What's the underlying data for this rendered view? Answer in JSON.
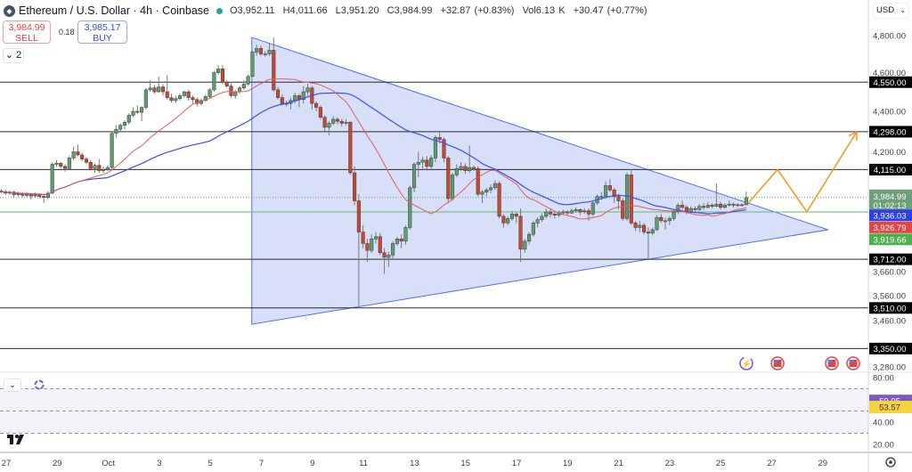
{
  "header": {
    "symbol_title": "Ethereum / U.S. Dollar · 4h · Coinbase",
    "open": "O3,952.11",
    "high": "H4,011.66",
    "low": "L3,951.20",
    "close": "C3,984.99",
    "change": "+32.87 (+0.83%)",
    "volume": "Vol6.13 K",
    "volume_change": "+30.47 (+0.77%)"
  },
  "trade": {
    "sell_price": "3,984.99",
    "sell_label": "SELL",
    "spread": "0.18",
    "buy_price": "3,985.17",
    "buy_label": "BUY"
  },
  "indicators_toggle": "⌄ 2",
  "currency": "USD",
  "colors": {
    "up": "#5f9f6f",
    "down": "#c9482f",
    "ma_fast": "#e35d5d",
    "ma_slow": "#3d4ef0",
    "triangle_fill": "#c9d4f7",
    "triangle_line": "#4f6ef2",
    "projection": "#f39c24",
    "rsi": "#7e57c2",
    "rsi_ma": "#f0c94a",
    "current_line": "#66bb6a"
  },
  "chart_data": [
    {
      "type": "candlestick",
      "interval": "4h",
      "scale": "log",
      "ylim": [
        3280,
        4800
      ],
      "x_ticks": [
        "27",
        "29",
        "Oct",
        "3",
        "5",
        "7",
        "9",
        "11",
        "13",
        "15",
        "17",
        "19",
        "21",
        "23",
        "25",
        "27",
        "29"
      ],
      "y_ticks": [
        "4,800.00",
        "4,600.00",
        "4,400.00",
        "4,200.00",
        "3,660.00",
        "3,560.00",
        "3,460.00",
        "3,280.00"
      ],
      "horizontal_levels": [
        "4,550.00",
        "4,298.00",
        "4,115.00",
        "3,712.00",
        "3,510.00",
        "3,350.00"
      ],
      "price_tags": {
        "last": "3,984.99",
        "countdown": "01:02:13",
        "ma_slow": "3,936.03",
        "ma_fast": "3,926.79",
        "level": "3,919.66"
      },
      "triangle": [
        {
          "time": "Oct 6 15:00",
          "price": 4790
        },
        {
          "time": "Oct 29 05:00",
          "price": 3840
        },
        {
          "time": "Oct 6 15:00",
          "price": 3445
        }
      ],
      "projection": [
        {
          "time": "Oct 26 02:00",
          "price": 3960
        },
        {
          "time": "Oct 27 05:30",
          "price": 4115
        },
        {
          "time": "Oct 28 09:00",
          "price": 3920
        },
        {
          "time": "Oct 30 08:00",
          "price": 4298
        }
      ],
      "candles": [
        [
          4015,
          4025,
          4002,
          4012
        ],
        [
          4012,
          4020,
          3998,
          4005
        ],
        [
          4005,
          4018,
          3996,
          4010
        ],
        [
          4010,
          4016,
          3985,
          3998
        ],
        [
          3998,
          4012,
          3990,
          4002
        ],
        [
          4002,
          4010,
          3985,
          3995
        ],
        [
          3995,
          4010,
          3988,
          4000
        ],
        [
          4000,
          4006,
          3975,
          3992
        ],
        [
          3992,
          4008,
          3985,
          3998
        ],
        [
          3998,
          4004,
          3982,
          3990
        ],
        [
          3990,
          3998,
          3960,
          3985
        ],
        [
          3985,
          4015,
          3978,
          4005
        ],
        [
          4005,
          4150,
          4000,
          4140
        ],
        [
          4140,
          4160,
          4128,
          4145
        ],
        [
          4145,
          4152,
          4120,
          4130
        ],
        [
          4130,
          4140,
          4105,
          4120
        ],
        [
          4120,
          4180,
          4115,
          4170
        ],
        [
          4170,
          4225,
          4160,
          4200
        ],
        [
          4200,
          4235,
          4178,
          4185
        ],
        [
          4185,
          4195,
          4155,
          4165
        ],
        [
          4165,
          4175,
          4140,
          4150
        ],
        [
          4150,
          4160,
          4110,
          4120
        ],
        [
          4120,
          4145,
          4100,
          4135
        ],
        [
          4135,
          4165,
          4100,
          4110
        ],
        [
          4110,
          4130,
          4098,
          4115
        ],
        [
          4115,
          4135,
          4108,
          4125
        ],
        [
          4125,
          4300,
          4120,
          4290
        ],
        [
          4290,
          4330,
          4270,
          4310
        ],
        [
          4310,
          4340,
          4300,
          4330
        ],
        [
          4330,
          4355,
          4310,
          4345
        ],
        [
          4345,
          4390,
          4335,
          4380
        ],
        [
          4380,
          4420,
          4370,
          4400
        ],
        [
          4400,
          4430,
          4385,
          4395
        ],
        [
          4395,
          4425,
          4350,
          4420
        ],
        [
          4420,
          4520,
          4410,
          4510
        ],
        [
          4510,
          4560,
          4500,
          4520
        ],
        [
          4520,
          4535,
          4490,
          4500
        ],
        [
          4500,
          4580,
          4495,
          4525
        ],
        [
          4525,
          4540,
          4480,
          4500
        ],
        [
          4500,
          4585,
          4460,
          4470
        ],
        [
          4470,
          4490,
          4445,
          4455
        ],
        [
          4455,
          4480,
          4440,
          4465
        ],
        [
          4465,
          4490,
          4455,
          4480
        ],
        [
          4480,
          4505,
          4470,
          4500
        ],
        [
          4500,
          4510,
          4455,
          4470
        ],
        [
          4470,
          4480,
          4440,
          4460
        ],
        [
          4460,
          4470,
          4425,
          4440
        ],
        [
          4440,
          4465,
          4430,
          4455
        ],
        [
          4455,
          4485,
          4450,
          4475
        ],
        [
          4475,
          4520,
          4465,
          4510
        ],
        [
          4510,
          4610,
          4500,
          4600
        ],
        [
          4600,
          4640,
          4590,
          4620
        ],
        [
          4620,
          4640,
          4540,
          4550
        ],
        [
          4550,
          4560,
          4520,
          4530
        ],
        [
          4530,
          4545,
          4470,
          4480
        ],
        [
          4480,
          4510,
          4465,
          4500
        ],
        [
          4500,
          4530,
          4490,
          4520
        ],
        [
          4520,
          4560,
          4510,
          4540
        ],
        [
          4540,
          4590,
          4530,
          4580
        ],
        [
          4580,
          4720,
          4575,
          4710
        ],
        [
          4710,
          4750,
          4690,
          4730
        ],
        [
          4730,
          4745,
          4690,
          4700
        ],
        [
          4700,
          4715,
          4685,
          4700
        ],
        [
          4700,
          4760,
          4690,
          4720
        ],
        [
          4720,
          4790,
          4500,
          4510
        ],
        [
          4510,
          4525,
          4460,
          4470
        ],
        [
          4470,
          4485,
          4430,
          4440
        ],
        [
          4440,
          4455,
          4425,
          4440
        ],
        [
          4440,
          4470,
          4410,
          4455
        ],
        [
          4455,
          4495,
          4440,
          4480
        ],
        [
          4480,
          4490,
          4420,
          4460
        ],
        [
          4460,
          4530,
          4440,
          4500
        ],
        [
          4500,
          4540,
          4480,
          4520
        ],
        [
          4520,
          4530,
          4410,
          4440
        ],
        [
          4440,
          4450,
          4400,
          4420
        ],
        [
          4420,
          4430,
          4360,
          4370
        ],
        [
          4370,
          4380,
          4300,
          4320
        ],
        [
          4320,
          4350,
          4280,
          4340
        ],
        [
          4340,
          4375,
          4330,
          4360
        ],
        [
          4360,
          4370,
          4335,
          4350
        ],
        [
          4350,
          4362,
          4325,
          4340
        ],
        [
          4340,
          4360,
          4330,
          4345
        ],
        [
          4345,
          4350,
          4090,
          4100
        ],
        [
          4100,
          4130,
          3950,
          3970
        ],
        [
          3970,
          4000,
          3510,
          3830
        ],
        [
          3830,
          3860,
          3760,
          3780
        ],
        [
          3780,
          3800,
          3700,
          3750
        ],
        [
          3750,
          3820,
          3740,
          3800
        ],
        [
          3800,
          3830,
          3780,
          3810
        ],
        [
          3810,
          3825,
          3730,
          3740
        ],
        [
          3740,
          3760,
          3650,
          3720
        ],
        [
          3720,
          3745,
          3680,
          3730
        ],
        [
          3730,
          3790,
          3710,
          3780
        ],
        [
          3780,
          3810,
          3770,
          3800
        ],
        [
          3800,
          3820,
          3760,
          3790
        ],
        [
          3790,
          3860,
          3775,
          3850
        ],
        [
          3850,
          4040,
          3840,
          4030
        ],
        [
          4030,
          4150,
          4010,
          4140
        ],
        [
          4140,
          4200,
          4080,
          4150
        ],
        [
          4150,
          4175,
          4120,
          4160
        ],
        [
          4160,
          4180,
          4110,
          4130
        ],
        [
          4130,
          4185,
          4120,
          4170
        ],
        [
          4170,
          4280,
          4150,
          4270
        ],
        [
          4270,
          4295,
          4240,
          4260
        ],
        [
          4260,
          4270,
          4150,
          4170
        ],
        [
          4170,
          4180,
          3960,
          3980
        ],
        [
          3980,
          4100,
          3970,
          4090
        ],
        [
          4090,
          4140,
          4080,
          4120
        ],
        [
          4120,
          4150,
          4110,
          4130
        ],
        [
          4130,
          4145,
          4095,
          4110
        ],
        [
          4110,
          4230,
          4100,
          4125
        ],
        [
          4125,
          4135,
          4110,
          4120
        ],
        [
          4120,
          4130,
          3990,
          4000
        ],
        [
          4000,
          4020,
          3960,
          4010
        ],
        [
          4010,
          4030,
          3990,
          4020
        ],
        [
          4020,
          4045,
          4005,
          4030
        ],
        [
          4030,
          4065,
          4020,
          4050
        ],
        [
          4050,
          4060,
          3890,
          3900
        ],
        [
          3900,
          3910,
          3850,
          3870
        ],
        [
          3870,
          3900,
          3860,
          3890
        ],
        [
          3890,
          3925,
          3880,
          3910
        ],
        [
          3910,
          3920,
          3870,
          3900
        ],
        [
          3900,
          3935,
          3700,
          3755
        ],
        [
          3755,
          3800,
          3740,
          3790
        ],
        [
          3790,
          3830,
          3775,
          3820
        ],
        [
          3820,
          3880,
          3810,
          3870
        ],
        [
          3870,
          3895,
          3850,
          3885
        ],
        [
          3885,
          3915,
          3875,
          3900
        ],
        [
          3900,
          3935,
          3890,
          3920
        ],
        [
          3920,
          3930,
          3895,
          3910
        ],
        [
          3910,
          3920,
          3890,
          3905
        ],
        [
          3905,
          3925,
          3895,
          3915
        ],
        [
          3915,
          3930,
          3905,
          3920
        ],
        [
          3920,
          3928,
          3905,
          3915
        ],
        [
          3915,
          3935,
          3910,
          3925
        ],
        [
          3925,
          3940,
          3915,
          3930
        ],
        [
          3930,
          3935,
          3905,
          3920
        ],
        [
          3920,
          3935,
          3912,
          3925
        ],
        [
          3925,
          3935,
          3880,
          3910
        ],
        [
          3910,
          3970,
          3900,
          3960
        ],
        [
          3960,
          4000,
          3950,
          3990
        ],
        [
          3990,
          4010,
          3975,
          3990
        ],
        [
          3990,
          4060,
          3980,
          4040
        ],
        [
          4040,
          4070,
          4010,
          4020
        ],
        [
          4020,
          4030,
          3960,
          3990
        ],
        [
          3990,
          4000,
          3930,
          3970
        ],
        [
          3970,
          3980,
          3880,
          3890
        ],
        [
          3890,
          4100,
          3880,
          4090
        ],
        [
          4090,
          4115,
          3860,
          3870
        ],
        [
          3870,
          3880,
          3835,
          3850
        ],
        [
          3850,
          3880,
          3830,
          3860
        ],
        [
          3860,
          3870,
          3820,
          3830
        ],
        [
          3830,
          3850,
          3712,
          3825
        ],
        [
          3825,
          3850,
          3815,
          3840
        ],
        [
          3840,
          3905,
          3835,
          3895
        ],
        [
          3895,
          3910,
          3870,
          3880
        ],
        [
          3880,
          3895,
          3840,
          3880
        ],
        [
          3880,
          3900,
          3860,
          3890
        ],
        [
          3890,
          3930,
          3880,
          3920
        ],
        [
          3920,
          3960,
          3910,
          3950
        ],
        [
          3950,
          3970,
          3930,
          3940
        ],
        [
          3940,
          3950,
          3910,
          3920
        ],
        [
          3920,
          3945,
          3910,
          3935
        ],
        [
          3935,
          3945,
          3920,
          3930
        ],
        [
          3930,
          3955,
          3925,
          3945
        ],
        [
          3945,
          3960,
          3930,
          3940
        ],
        [
          3940,
          3965,
          3935,
          3950
        ],
        [
          3950,
          3960,
          3935,
          3945
        ],
        [
          3945,
          4050,
          3940,
          3955
        ],
        [
          3955,
          3965,
          3930,
          3940
        ],
        [
          3940,
          3960,
          3935,
          3950
        ],
        [
          3950,
          3970,
          3945,
          3955
        ],
        [
          3955,
          3962,
          3940,
          3950
        ],
        [
          3950,
          3960,
          3942,
          3952
        ],
        [
          3952,
          3958,
          3945,
          3952.11
        ],
        [
          3952.11,
          4011.66,
          3951.2,
          3984.99
        ]
      ]
    },
    {
      "type": "line",
      "name": "RSI",
      "ylim": [
        20,
        80
      ],
      "bands": [
        30,
        50,
        70
      ],
      "y_ticks": [
        "80.00",
        "40.00",
        "20.00"
      ],
      "value_tags": {
        "rsi": "59.05",
        "rsi_ma": "53.57"
      }
    }
  ],
  "events": [
    "lightning-event-icon",
    "us-flag-event-icon",
    "us-flag-event-icon",
    "us-flag-event-icon"
  ]
}
